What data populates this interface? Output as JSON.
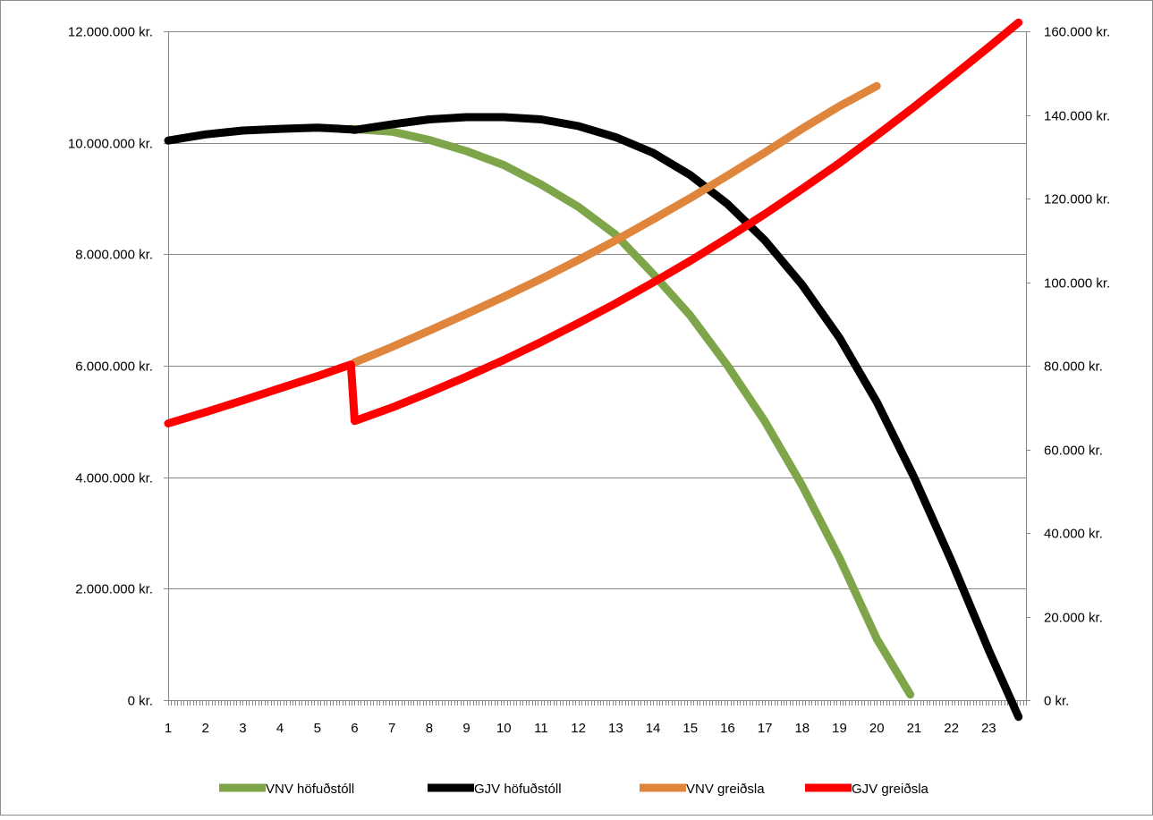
{
  "chart_data": {
    "type": "line",
    "title": "",
    "xlabel": "",
    "ylabel": "",
    "x_ticks": [
      "1",
      "2",
      "3",
      "4",
      "5",
      "6",
      "7",
      "8",
      "9",
      "10",
      "11",
      "12",
      "13",
      "14",
      "15",
      "16",
      "17",
      "18",
      "19",
      "20",
      "21",
      "22",
      "23"
    ],
    "xlim": [
      1,
      24
    ],
    "ylim_left": [
      0,
      12000000
    ],
    "ylim_right": [
      0,
      160000
    ],
    "left_ticks": [
      {
        "value": 0,
        "label": "0 kr."
      },
      {
        "value": 2000000,
        "label": "2.000.000 kr."
      },
      {
        "value": 4000000,
        "label": "4.000.000 kr."
      },
      {
        "value": 6000000,
        "label": "6.000.000 kr."
      },
      {
        "value": 8000000,
        "label": "8.000.000 kr."
      },
      {
        "value": 10000000,
        "label": "10.000.000 kr."
      },
      {
        "value": 12000000,
        "label": "12.000.000 kr."
      }
    ],
    "right_ticks": [
      {
        "value": 0,
        "label": "0 kr."
      },
      {
        "value": 20000,
        "label": "20.000 kr."
      },
      {
        "value": 40000,
        "label": "40.000 kr."
      },
      {
        "value": 60000,
        "label": "60.000 kr."
      },
      {
        "value": 80000,
        "label": "80.000 kr."
      },
      {
        "value": 100000,
        "label": "100.000 kr."
      },
      {
        "value": 120000,
        "label": "120.000 kr."
      },
      {
        "value": 140000,
        "label": "140.000 kr."
      },
      {
        "value": 160000,
        "label": "160.000 kr."
      }
    ],
    "grid": "horizontal",
    "legend_position": "bottom",
    "series": [
      {
        "name": "VNV höfuðstóll",
        "axis": "left",
        "color": "#7fa54a",
        "points": [
          [
            5.9,
            10250000
          ],
          [
            7,
            10200000
          ],
          [
            8,
            10050000
          ],
          [
            9,
            9850000
          ],
          [
            10,
            9600000
          ],
          [
            11,
            9250000
          ],
          [
            12,
            8850000
          ],
          [
            13,
            8350000
          ],
          [
            14,
            7650000
          ],
          [
            15,
            6900000
          ],
          [
            16,
            6000000
          ],
          [
            17,
            5000000
          ],
          [
            18,
            3850000
          ],
          [
            19,
            2550000
          ],
          [
            20,
            1100000
          ],
          [
            20.9,
            100000
          ]
        ]
      },
      {
        "name": "GJV höfuðstóll",
        "axis": "left",
        "color": "#000000",
        "points": [
          [
            1,
            10040000
          ],
          [
            2,
            10150000
          ],
          [
            3,
            10220000
          ],
          [
            4,
            10250000
          ],
          [
            5,
            10270000
          ],
          [
            5.9,
            10240000
          ],
          [
            6,
            10230000
          ],
          [
            7,
            10330000
          ],
          [
            8,
            10420000
          ],
          [
            9,
            10460000
          ],
          [
            10,
            10460000
          ],
          [
            11,
            10420000
          ],
          [
            12,
            10300000
          ],
          [
            13,
            10100000
          ],
          [
            14,
            9820000
          ],
          [
            15,
            9420000
          ],
          [
            16,
            8900000
          ],
          [
            17,
            8250000
          ],
          [
            18,
            7450000
          ],
          [
            19,
            6500000
          ],
          [
            20,
            5350000
          ],
          [
            21,
            4000000
          ],
          [
            22,
            2500000
          ],
          [
            23,
            900000
          ],
          [
            23.8,
            -300000
          ]
        ]
      },
      {
        "name": "VNV greiðsla",
        "axis": "right",
        "color": "#e0853c",
        "points": [
          [
            6,
            80800
          ],
          [
            7,
            84500
          ],
          [
            8,
            88400
          ],
          [
            9,
            92400
          ],
          [
            10,
            96500
          ],
          [
            11,
            100800
          ],
          [
            12,
            105300
          ],
          [
            13,
            110000
          ],
          [
            14,
            115000
          ],
          [
            15,
            120100
          ],
          [
            16,
            125500
          ],
          [
            17,
            131000
          ],
          [
            18,
            136700
          ],
          [
            19,
            142100
          ],
          [
            20,
            146900
          ]
        ]
      },
      {
        "name": "GJV greiðsla",
        "axis": "right",
        "color": "#ff0000",
        "points": [
          [
            1,
            66200
          ],
          [
            2,
            68900
          ],
          [
            3,
            71700
          ],
          [
            4,
            74600
          ],
          [
            5,
            77500
          ],
          [
            5.9,
            80300
          ],
          [
            6,
            66800
          ],
          [
            7,
            70000
          ],
          [
            8,
            73600
          ],
          [
            9,
            77400
          ],
          [
            10,
            81400
          ],
          [
            11,
            85700
          ],
          [
            12,
            90200
          ],
          [
            13,
            94900
          ],
          [
            14,
            99900
          ],
          [
            15,
            105100
          ],
          [
            16,
            110600
          ],
          [
            17,
            116300
          ],
          [
            18,
            122300
          ],
          [
            19,
            128500
          ],
          [
            20,
            135100
          ],
          [
            21,
            141900
          ],
          [
            22,
            149000
          ],
          [
            23,
            156200
          ],
          [
            23.8,
            162100
          ]
        ]
      }
    ]
  }
}
